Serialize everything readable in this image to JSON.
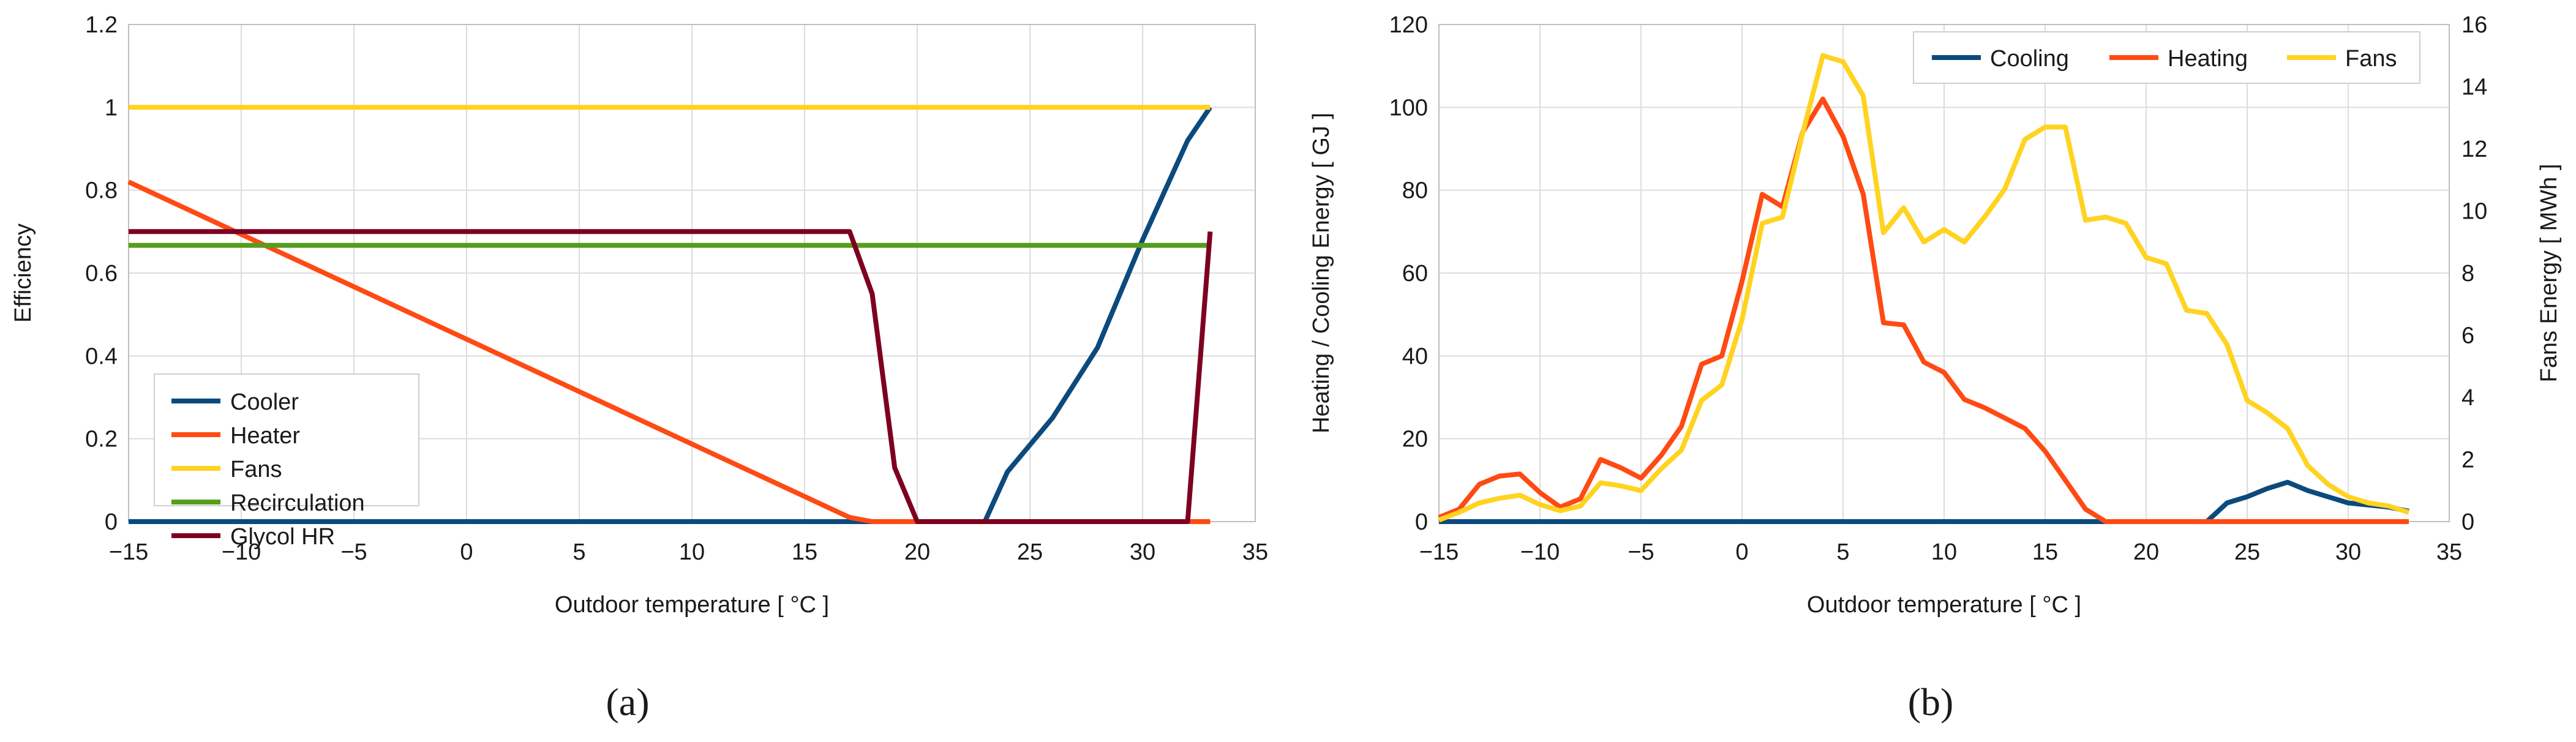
{
  "charts": [
    {
      "panel_label": "(a)",
      "xlabel": "Outdoor temperature [ °C ]",
      "ylabel": "Efficiency"
    },
    {
      "panel_label": "(b)",
      "xlabel": "Outdoor temperature [ °C ]",
      "ylabel": "Heating / Cooling Energy [ GJ ]",
      "y2label": "Fans Energy [ MWh ]"
    }
  ],
  "chart_data": [
    {
      "type": "line",
      "title": "",
      "xlabel": "Outdoor temperature [ °C ]",
      "ylabel": "Efficiency",
      "xlim": [
        -15,
        35
      ],
      "ylim": [
        0,
        1.2
      ],
      "xticks": [
        "−15",
        "−10",
        "−5",
        "0",
        "5",
        "10",
        "15",
        "20",
        "25",
        "30",
        "35"
      ],
      "xtick_values": [
        -15,
        -10,
        -5,
        0,
        5,
        10,
        15,
        20,
        25,
        30,
        35
      ],
      "yticks": [
        "0",
        "0.2",
        "0.4",
        "0.6",
        "0.8",
        "1",
        "1.2"
      ],
      "ytick_values": [
        0,
        0.2,
        0.4,
        0.6,
        0.8,
        1,
        1.2
      ],
      "grid": true,
      "legend_position": "bottom-left",
      "series": [
        {
          "name": "Cooler",
          "color": "#0b4a7d",
          "points": [
            [
              -15,
              0
            ],
            [
              23,
              0
            ],
            [
              24,
              0.12
            ],
            [
              26,
              0.25
            ],
            [
              28,
              0.42
            ],
            [
              29,
              0.55
            ],
            [
              30,
              0.68
            ],
            [
              31,
              0.8
            ],
            [
              32,
              0.92
            ],
            [
              33,
              1.0
            ]
          ]
        },
        {
          "name": "Heater",
          "color": "#ff4a14",
          "points": [
            [
              -15,
              0.82
            ],
            [
              17,
              0.01
            ],
            [
              18,
              0
            ],
            [
              33,
              0
            ]
          ]
        },
        {
          "name": "Fans",
          "color": "#ffd320",
          "points": [
            [
              -15,
              1
            ],
            [
              33,
              1
            ]
          ]
        },
        {
          "name": "Recirculation",
          "color": "#579d1c",
          "points": [
            [
              -15,
              0.667
            ],
            [
              33,
              0.667
            ]
          ]
        },
        {
          "name": "Glycol HR",
          "color": "#7e0021",
          "points": [
            [
              -15,
              0.7
            ],
            [
              17,
              0.7
            ],
            [
              18,
              0.55
            ],
            [
              19,
              0.13
            ],
            [
              20,
              0
            ],
            [
              32,
              0
            ],
            [
              33,
              0.7
            ]
          ]
        }
      ]
    },
    {
      "type": "line",
      "title": "",
      "xlabel": "Outdoor temperature [ °C ]",
      "ylabel": "Heating / Cooling Energy [ GJ ]",
      "y2label": "Fans Energy [ MWh ]",
      "xlim": [
        -15,
        35
      ],
      "ylim": [
        0,
        120
      ],
      "y2lim": [
        0,
        16
      ],
      "xticks": [
        "−15",
        "−10",
        "−5",
        "0",
        "5",
        "10",
        "15",
        "20",
        "25",
        "30",
        "35"
      ],
      "xtick_values": [
        -15,
        -10,
        -5,
        0,
        5,
        10,
        15,
        20,
        25,
        30,
        35
      ],
      "yticks": [
        "0",
        "20",
        "40",
        "60",
        "80",
        "100",
        "120"
      ],
      "ytick_values": [
        0,
        20,
        40,
        60,
        80,
        100,
        120
      ],
      "y2ticks": [
        "0",
        "2",
        "4",
        "6",
        "8",
        "10",
        "12",
        "14",
        "16"
      ],
      "y2tick_values": [
        0,
        2,
        4,
        6,
        8,
        10,
        12,
        14,
        16
      ],
      "grid": true,
      "legend_position": "top-right",
      "series": [
        {
          "name": "Cooling",
          "color": "#0b4a7d",
          "axis": "left",
          "points": [
            [
              -15,
              0
            ],
            [
              23,
              0
            ],
            [
              24,
              4.5
            ],
            [
              25,
              6
            ],
            [
              26,
              8
            ],
            [
              27,
              9.5
            ],
            [
              28,
              7.5
            ],
            [
              29,
              6
            ],
            [
              30,
              4.5
            ],
            [
              31,
              4
            ],
            [
              32,
              3.5
            ],
            [
              33,
              2.5
            ]
          ]
        },
        {
          "name": "Heating",
          "color": "#ff4a14",
          "axis": "left",
          "points": [
            [
              -15,
              1
            ],
            [
              -14,
              3
            ],
            [
              -13,
              9
            ],
            [
              -12,
              11
            ],
            [
              -11,
              11.5
            ],
            [
              -10,
              7
            ],
            [
              -9,
              3.5
            ],
            [
              -8,
              5.5
            ],
            [
              -7,
              15
            ],
            [
              -6,
              13
            ],
            [
              -5,
              10.5
            ],
            [
              -4,
              16
            ],
            [
              -3,
              23
            ],
            [
              -2,
              38
            ],
            [
              -1,
              40
            ],
            [
              0,
              58
            ],
            [
              1,
              79
            ],
            [
              2,
              76
            ],
            [
              3,
              94
            ],
            [
              4,
              102
            ],
            [
              5,
              93
            ],
            [
              6,
              79
            ],
            [
              7,
              48
            ],
            [
              8,
              47.5
            ],
            [
              9,
              38.5
            ],
            [
              10,
              36
            ],
            [
              11,
              29.5
            ],
            [
              12,
              27.5
            ],
            [
              13,
              25
            ],
            [
              14,
              22.5
            ],
            [
              15,
              17
            ],
            [
              16,
              10
            ],
            [
              17,
              3
            ],
            [
              18,
              0
            ],
            [
              33,
              0
            ]
          ]
        },
        {
          "name": "Fans",
          "color": "#ffd320",
          "axis": "right",
          "points": [
            [
              -15,
              0.05
            ],
            [
              -14,
              0.3
            ],
            [
              -13,
              0.6
            ],
            [
              -12,
              0.75
            ],
            [
              -11,
              0.85
            ],
            [
              -10,
              0.55
            ],
            [
              -9,
              0.35
            ],
            [
              -8,
              0.5
            ],
            [
              -7,
              1.25
            ],
            [
              -6,
              1.15
            ],
            [
              -5,
              1
            ],
            [
              -4,
              1.7
            ],
            [
              -3,
              2.3
            ],
            [
              -2,
              3.9
            ],
            [
              -1,
              4.4
            ],
            [
              0,
              6.5
            ],
            [
              1,
              9.6
            ],
            [
              2,
              9.8
            ],
            [
              3,
              12.5
            ],
            [
              4,
              15
            ],
            [
              5,
              14.8
            ],
            [
              6,
              13.7
            ],
            [
              7,
              9.3
            ],
            [
              8,
              10.1
            ],
            [
              9,
              9
            ],
            [
              10,
              9.4
            ],
            [
              11,
              9
            ],
            [
              12,
              9.8
            ],
            [
              13,
              10.7
            ],
            [
              14,
              12.3
            ],
            [
              15,
              12.7
            ],
            [
              16,
              12.7
            ],
            [
              17,
              9.7
            ],
            [
              18,
              9.8
            ],
            [
              19,
              9.6
            ],
            [
              20,
              8.5
            ],
            [
              21,
              8.3
            ],
            [
              22,
              6.8
            ],
            [
              23,
              6.7
            ],
            [
              24,
              5.7
            ],
            [
              25,
              3.9
            ],
            [
              26,
              3.5
            ],
            [
              27,
              3
            ],
            [
              28,
              1.8
            ],
            [
              29,
              1.2
            ],
            [
              30,
              0.8
            ],
            [
              31,
              0.6
            ],
            [
              32,
              0.5
            ],
            [
              33,
              0.3
            ]
          ]
        }
      ]
    }
  ]
}
